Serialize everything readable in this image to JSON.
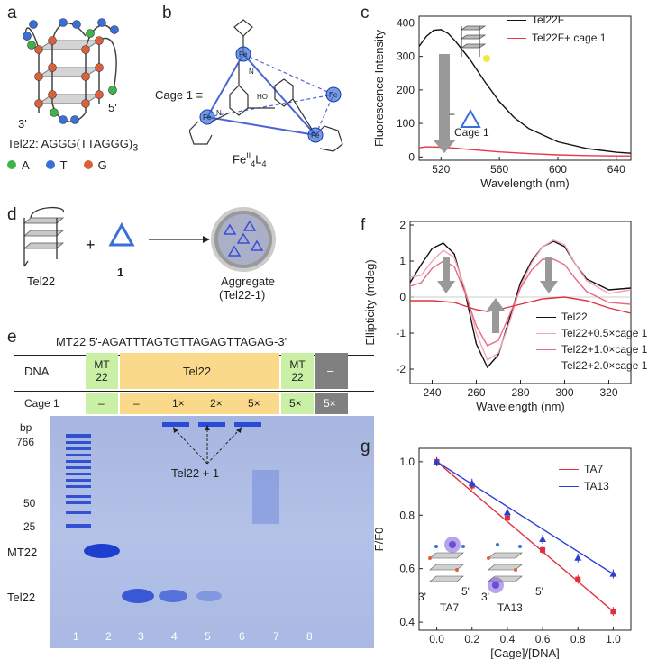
{
  "panels": {
    "a": {
      "letter": "a",
      "sequence_label": "Tel22: AGGG(TTAGGG)",
      "sequence_sub": "3",
      "end3": "3'",
      "end5": "5'",
      "legend": [
        {
          "name": "A",
          "color": "#3bb54a"
        },
        {
          "name": "T",
          "color": "#3a6fd8"
        },
        {
          "name": "G",
          "color": "#d9623b"
        }
      ]
    },
    "b": {
      "letter": "b",
      "cage_label": "Cage 1 ≡",
      "formula": "Fe",
      "formula_sup": "II",
      "formula_sub1": "4",
      "formula_L": "L",
      "formula_sub2": "4",
      "atoms": [
        "Fe",
        "Fe",
        "Fe",
        "Fe",
        "N",
        "N",
        "HO"
      ]
    },
    "c": {
      "letter": "c",
      "legend": [
        "Tel22F",
        "Tel22F+ cage 1"
      ],
      "arrow_label": "+",
      "arrow_label2": "Cage 1"
    },
    "d": {
      "letter": "d",
      "tel22": "Tel22",
      "plus": "+",
      "cage": "1",
      "aggregate1": "Aggregate",
      "aggregate2": "(Tel22-1)"
    },
    "e": {
      "letter": "e",
      "mt22_seq": "MT22  5'-AGATTTAGTGTTAGAGTTAGAG-3'",
      "row_dna": "DNA",
      "row_cage": "Cage 1",
      "dna_cells": [
        "MT 22",
        "Tel22",
        "MT 22",
        "–"
      ],
      "cage_cells": [
        "–",
        "–",
        "1×",
        "2×",
        "5×",
        "5×",
        "5×"
      ],
      "bp": "bp",
      "markers": [
        "766",
        "50",
        "25"
      ],
      "band_labels": [
        "MT22",
        "Tel22"
      ],
      "annotation": "Tel22 + 1",
      "lanes": [
        "1",
        "2",
        "3",
        "4",
        "5",
        "6",
        "7",
        "8"
      ]
    },
    "f": {
      "letter": "f",
      "legend": [
        "Tel22",
        "Tel22+0.5×cage 1",
        "Tel22+1.0×cage 1",
        "Tel22+2.0×cage 1"
      ]
    },
    "g": {
      "letter": "g",
      "legend": [
        "TA7",
        "TA13"
      ],
      "inset_labels": [
        "TA7",
        "TA13",
        "3'",
        "5'",
        "3'",
        "5'"
      ]
    }
  },
  "chart_data": [
    {
      "id": "c",
      "type": "line",
      "title": "",
      "xlabel": "Wavelength (nm)",
      "ylabel": "Fluorescence Intensity",
      "xlim": [
        505,
        650
      ],
      "ylim": [
        -10,
        420
      ],
      "xticks": [
        520,
        560,
        600,
        640
      ],
      "yticks": [
        0,
        100,
        200,
        300,
        400
      ],
      "series": [
        {
          "name": "Tel22F",
          "color": "#111111",
          "x": [
            505,
            510,
            515,
            520,
            525,
            530,
            540,
            550,
            560,
            570,
            580,
            600,
            620,
            640,
            650
          ],
          "y": [
            330,
            360,
            378,
            380,
            368,
            345,
            290,
            225,
            165,
            118,
            85,
            45,
            25,
            14,
            11
          ]
        },
        {
          "name": "Tel22F+ cage 1",
          "color": "#e8394a",
          "x": [
            505,
            510,
            520,
            530,
            540,
            560,
            580,
            600,
            620,
            640,
            650
          ],
          "y": [
            27,
            30,
            29,
            26,
            22,
            15,
            10,
            6,
            4,
            3,
            3
          ]
        }
      ]
    },
    {
      "id": "f",
      "type": "line",
      "title": "",
      "xlabel": "Wavelength (nm)",
      "ylabel": "Ellipticity (mdeg)",
      "xlim": [
        230,
        330
      ],
      "ylim": [
        -2.4,
        2.1
      ],
      "xticks": [
        240,
        260,
        280,
        300,
        320
      ],
      "yticks": [
        -2,
        -1,
        0,
        1,
        2
      ],
      "series": [
        {
          "name": "Tel22",
          "color": "#111111",
          "x": [
            230,
            235,
            240,
            245,
            250,
            255,
            260,
            265,
            270,
            275,
            280,
            285,
            290,
            295,
            300,
            305,
            310,
            320,
            330
          ],
          "y": [
            0.4,
            0.9,
            1.35,
            1.5,
            1.2,
            0.1,
            -1.3,
            -1.95,
            -1.6,
            -0.6,
            0.4,
            1.0,
            1.4,
            1.55,
            1.4,
            0.9,
            0.5,
            0.2,
            0.25
          ]
        },
        {
          "name": "Tel22+0.5×cage 1",
          "color": "#f2a5b4",
          "x": [
            230,
            235,
            240,
            245,
            250,
            255,
            260,
            265,
            270,
            275,
            280,
            285,
            290,
            295,
            300,
            305,
            310,
            320,
            330
          ],
          "y": [
            0.55,
            0.6,
            1.0,
            1.3,
            1.1,
            0.2,
            -1.0,
            -1.75,
            -1.55,
            -0.7,
            0.3,
            0.95,
            1.4,
            1.58,
            1.45,
            0.9,
            0.45,
            0.1,
            0.2
          ]
        },
        {
          "name": "Tel22+1.0×cage 1",
          "color": "#e86a82",
          "x": [
            230,
            235,
            240,
            245,
            250,
            255,
            260,
            265,
            270,
            275,
            280,
            285,
            290,
            295,
            300,
            305,
            310,
            320,
            330
          ],
          "y": [
            0.3,
            0.4,
            0.8,
            1.0,
            0.85,
            0.1,
            -0.8,
            -1.35,
            -1.2,
            -0.5,
            0.25,
            0.75,
            1.05,
            1.05,
            0.9,
            0.5,
            0.15,
            -0.15,
            -0.2
          ]
        },
        {
          "name": "Tel22+2.0×cage 1",
          "color": "#e0303f",
          "x": [
            230,
            240,
            250,
            260,
            265,
            270,
            280,
            290,
            300,
            310,
            320,
            330
          ],
          "y": [
            -0.1,
            -0.1,
            -0.15,
            -0.35,
            -0.4,
            -0.35,
            -0.2,
            -0.05,
            0.0,
            -0.1,
            -0.3,
            -0.45
          ]
        }
      ]
    },
    {
      "id": "g",
      "type": "scatter",
      "title": "",
      "xlabel": "[Cage]/[DNA]",
      "ylabel": "F/F0",
      "xlim": [
        -0.1,
        1.1
      ],
      "ylim": [
        0.37,
        1.05
      ],
      "xticks": [
        0.0,
        0.2,
        0.4,
        0.6,
        0.8,
        1.0
      ],
      "yticks": [
        0.4,
        0.6,
        0.8,
        1.0
      ],
      "series": [
        {
          "name": "TA7",
          "color": "#e0303f",
          "marker": "square",
          "x": [
            0.0,
            0.2,
            0.4,
            0.6,
            0.8,
            1.0
          ],
          "y": [
            1.0,
            0.91,
            0.79,
            0.67,
            0.56,
            0.44
          ]
        },
        {
          "name": "TA13",
          "color": "#2b3fd1",
          "marker": "triangle",
          "x": [
            0.0,
            0.2,
            0.4,
            0.6,
            0.8,
            1.0
          ],
          "y": [
            1.0,
            0.92,
            0.81,
            0.71,
            0.64,
            0.58
          ]
        }
      ]
    }
  ]
}
